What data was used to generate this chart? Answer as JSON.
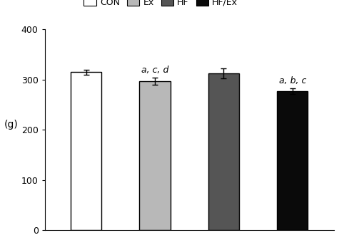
{
  "categories": [
    "CON",
    "Ex",
    "HF",
    "HF/Ex"
  ],
  "values": [
    315,
    297,
    312,
    277
  ],
  "errors": [
    5,
    7,
    10,
    6
  ],
  "bar_colors": [
    "#ffffff",
    "#b8b8b8",
    "#555555",
    "#0a0a0a"
  ],
  "bar_edgecolors": [
    "#000000",
    "#000000",
    "#000000",
    "#000000"
  ],
  "annotations": [
    "",
    "a, c, d",
    "",
    "a, b, c"
  ],
  "ylabel": "(g)",
  "ylim": [
    0,
    400
  ],
  "yticks": [
    0,
    100,
    200,
    300,
    400
  ],
  "legend_labels": [
    "CON",
    "Ex",
    "HF",
    "HF/Ex"
  ],
  "legend_colors": [
    "#ffffff",
    "#b8b8b8",
    "#555555",
    "#0a0a0a"
  ],
  "bar_width": 0.45,
  "annotation_fontsize": 9,
  "tick_fontsize": 9,
  "ylabel_fontsize": 10,
  "legend_fontsize": 9,
  "background_color": "#ffffff"
}
